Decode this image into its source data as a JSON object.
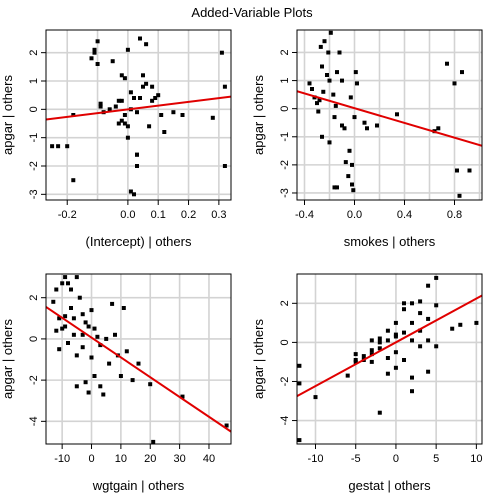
{
  "figure_title": "Added-Variable Plots",
  "style": {
    "grid_color": "#d3d3d3",
    "point_color": "#000000",
    "line_color": "#e00000"
  },
  "chart_data": [
    {
      "type": "scatter",
      "xlabel": "(Intercept) | others",
      "ylabel": "apgar  | others",
      "xlim": [
        -0.27,
        0.34
      ],
      "ylim": [
        -3.2,
        2.8
      ],
      "xticks": [
        -0.2,
        0.0,
        0.1,
        0.2,
        0.3
      ],
      "xtick_labels": [
        "-0.2",
        "0.0",
        "0.1",
        "0.2",
        "0.3"
      ],
      "yticks": [
        -3,
        -2,
        -1,
        0,
        1,
        2
      ],
      "ytick_labels": [
        "-3",
        "-2",
        "-1",
        "0",
        "1",
        "2"
      ],
      "grid_x": [
        -0.2,
        -0.1,
        0.0,
        0.1,
        0.2,
        0.3
      ],
      "grid_y": [
        -3,
        -2,
        -1,
        0,
        1,
        2
      ],
      "fit_line": {
        "x": [
          -0.27,
          0.34
        ],
        "y": [
          -0.36,
          0.45
        ]
      },
      "x": [
        -0.25,
        -0.23,
        -0.2,
        -0.18,
        -0.1,
        -0.12,
        -0.11,
        -0.11,
        -0.1,
        -0.09,
        -0.09,
        -0.08,
        -0.06,
        -0.05,
        -0.04,
        -0.03,
        -0.03,
        -0.02,
        -0.02,
        -0.01,
        -0.01,
        0.0,
        0.0,
        0.0,
        0.01,
        0.01,
        0.02,
        0.02,
        0.03,
        0.03,
        0.03,
        0.04,
        0.04,
        0.05,
        0.05,
        0.06,
        0.06,
        0.07,
        0.08,
        0.08,
        0.09,
        0.1,
        0.11,
        0.12,
        0.15,
        0.18,
        0.28,
        0.31,
        0.32,
        0.32,
        -0.18,
        -0.02,
        -0.01,
        0.01,
        0.03
      ],
      "y": [
        -1.3,
        -1.3,
        -1.3,
        -2.5,
        1.6,
        1.8,
        2.0,
        2.1,
        2.4,
        0.1,
        0.2,
        -0.1,
        0.0,
        1.7,
        0.1,
        0.3,
        -0.5,
        1.2,
        0.3,
        1.1,
        -0.2,
        2.1,
        -1.0,
        -0.6,
        -2.9,
        0.6,
        -3.0,
        0.4,
        -1.6,
        -2.0,
        -0.1,
        2.5,
        0.4,
        1.2,
        0.8,
        2.3,
        0.9,
        -0.6,
        0.3,
        0.8,
        0.4,
        0.5,
        -0.2,
        -0.8,
        -0.1,
        -0.2,
        -0.3,
        2.0,
        0.8,
        -2.0,
        -0.2,
        -0.4,
        -0.5,
        0.0,
        -1.6
      ]
    },
    {
      "type": "scatter",
      "xlabel": "smokes | others",
      "ylabel": "apgar  | others",
      "xlim": [
        -0.46,
        1.02
      ],
      "ylim": [
        -3.25,
        2.8
      ],
      "xticks": [
        -0.4,
        0.0,
        0.4,
        0.8
      ],
      "xtick_labels": [
        "-0.4",
        "0.0",
        "0.4",
        "0.8"
      ],
      "yticks": [
        -3,
        -2,
        -1,
        0,
        1,
        2
      ],
      "ytick_labels": [
        "-3",
        "-2",
        "-1",
        "0",
        "1",
        "2"
      ],
      "grid_x": [
        -0.4,
        -0.2,
        0.0,
        0.2,
        0.4,
        0.6,
        0.8,
        1.0
      ],
      "grid_y": [
        -3,
        -2,
        -1,
        0,
        1,
        2
      ],
      "fit_line": {
        "x": [
          -0.46,
          1.02
        ],
        "y": [
          0.62,
          -1.32
        ]
      },
      "x": [
        -0.36,
        -0.34,
        -0.32,
        -0.3,
        -0.29,
        -0.28,
        -0.27,
        -0.26,
        -0.25,
        -0.24,
        -0.22,
        -0.21,
        -0.2,
        -0.19,
        -0.17,
        -0.16,
        -0.15,
        -0.14,
        -0.12,
        -0.1,
        -0.08,
        -0.07,
        -0.05,
        -0.04,
        -0.03,
        -0.02,
        -0.01,
        0.0,
        0.01,
        0.02,
        0.1,
        0.18,
        0.34,
        0.64,
        0.74,
        0.8,
        0.82,
        0.84,
        0.86,
        0.92,
        0.67,
        0.08,
        -0.14,
        -0.16,
        -0.1,
        -0.02,
        -0.26,
        -0.2
      ],
      "y": [
        0.9,
        0.7,
        0.4,
        0.2,
        -0.1,
        0.3,
        2.2,
        1.5,
        0.6,
        2.4,
        1.2,
        2.0,
        1.0,
        2.7,
        0.5,
        -0.3,
        0.1,
        1.3,
        2.0,
        1.0,
        -0.7,
        -1.9,
        -2.4,
        -1.5,
        0.4,
        -2.7,
        -2.9,
        -0.3,
        1.3,
        0.9,
        -0.7,
        -0.6,
        -0.2,
        -0.8,
        1.6,
        0.9,
        -2.2,
        -3.1,
        1.3,
        -2.2,
        -0.7,
        -0.5,
        -2.8,
        -2.8,
        -0.6,
        -2.0,
        -1.0,
        -1.2
      ]
    },
    {
      "type": "scatter",
      "xlabel": "wgtgain | others",
      "ylabel": "apgar  | others",
      "xlim": [
        -15.5,
        47.5
      ],
      "ylim": [
        -5.1,
        3.15
      ],
      "xticks": [
        -10,
        0,
        10,
        20,
        30,
        40
      ],
      "xtick_labels": [
        "-10",
        "0",
        "10",
        "20",
        "30",
        "40"
      ],
      "yticks": [
        -4,
        -2,
        0,
        2
      ],
      "ytick_labels": [
        "-4",
        "-2",
        "0",
        "2"
      ],
      "grid_x": [
        -10,
        0,
        10,
        20,
        30,
        40
      ],
      "grid_y": [
        -4,
        -2,
        0,
        2
      ],
      "fit_line": {
        "x": [
          -15.5,
          47.5
        ],
        "y": [
          1.55,
          -4.5
        ]
      },
      "x": [
        -13,
        -12,
        -12,
        -11,
        -10,
        -10,
        -9,
        -9,
        -8,
        -8,
        -7,
        -7,
        -6,
        -6,
        -5,
        -5,
        -5,
        -4,
        -3,
        -3,
        -2,
        -2,
        -1,
        -1,
        0,
        0,
        1,
        1,
        2,
        3,
        4,
        5,
        6,
        7,
        8,
        9,
        10,
        11,
        12,
        14,
        16,
        20,
        21,
        31,
        46,
        -11,
        -9,
        -3,
        3
      ],
      "y": [
        1.8,
        2.4,
        0.4,
        -0.5,
        2.7,
        0.5,
        3.0,
        1.1,
        2.7,
        -0.2,
        2.4,
        1.5,
        1.0,
        0.2,
        3.0,
        -0.8,
        -2.3,
        2.0,
        1.2,
        -0.4,
        0.8,
        -2.1,
        0.6,
        -2.6,
        1.4,
        -0.9,
        0.5,
        -1.8,
        0.1,
        -2.3,
        -2.7,
        0.0,
        -1.2,
        1.7,
        0.2,
        -0.8,
        -1.8,
        1.5,
        -0.6,
        -2.0,
        -1.2,
        -2.2,
        -5.0,
        -2.8,
        -4.2,
        1.0,
        0.6,
        0.2,
        -0.3
      ]
    },
    {
      "type": "scatter",
      "xlabel": "gestat | others",
      "ylabel": "apgar  | others",
      "xlim": [
        -12.3,
        10.7
      ],
      "ylim": [
        -5.2,
        3.5
      ],
      "xticks": [
        -10,
        -5,
        0,
        5,
        10
      ],
      "xtick_labels": [
        "-10",
        "-5",
        "0",
        "5",
        "10"
      ],
      "yticks": [
        -4,
        -2,
        0,
        2
      ],
      "ytick_labels": [
        "-4",
        "-2",
        "0",
        "2"
      ],
      "grid_x": [
        -10,
        -5,
        0,
        5,
        10
      ],
      "grid_y": [
        -4,
        -2,
        0,
        2
      ],
      "fit_line": {
        "x": [
          -12.3,
          10.7
        ],
        "y": [
          -2.75,
          2.4
        ]
      },
      "x": [
        -12,
        -12,
        -12,
        -10,
        -6,
        -5,
        -5,
        -5,
        -4,
        -4,
        -3,
        -3,
        -3,
        -3,
        -2,
        -2,
        -2,
        -1,
        -1,
        -1,
        -1,
        0,
        0,
        0,
        0,
        1,
        1,
        1,
        1,
        2,
        2,
        2,
        2,
        2,
        3,
        3,
        3,
        3,
        4,
        4,
        4,
        4,
        5,
        5,
        5,
        7,
        8,
        10,
        11,
        -2,
        0
      ],
      "y": [
        -1.2,
        -2.1,
        -5.0,
        -2.8,
        -1.7,
        -0.6,
        -0.9,
        -1.0,
        -0.7,
        -0.9,
        -0.6,
        -1.0,
        0.1,
        -0.4,
        -0.3,
        0.2,
        -3.6,
        0.1,
        -0.8,
        -1.6,
        0.6,
        0.3,
        1.0,
        -0.5,
        -1.3,
        0.5,
        1.7,
        2.0,
        -0.9,
        0.1,
        1.0,
        2.0,
        -1.8,
        -2.5,
        1.5,
        2.1,
        0.6,
        -0.2,
        1.2,
        2.9,
        0.1,
        -1.5,
        3.3,
        1.9,
        -0.2,
        0.7,
        0.9,
        1.0,
        1.2,
        0.0,
        0.4
      ]
    }
  ]
}
